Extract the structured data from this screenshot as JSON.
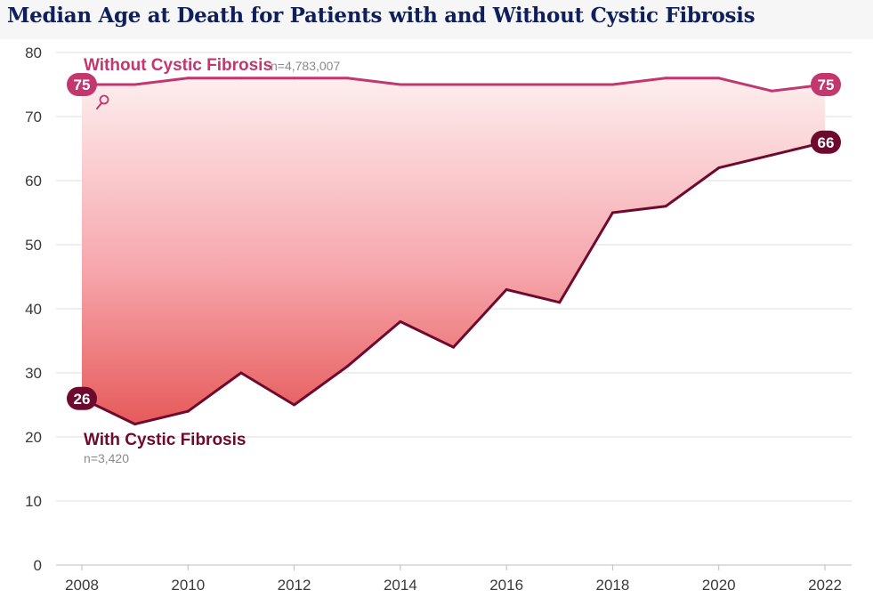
{
  "title": "Median Age at Death for Patients with and Without Cystic Fibrosis",
  "chart_data": {
    "type": "line",
    "title": "Median Age at Death for Patients with and Without Cystic Fibrosis",
    "xlabel": "",
    "ylabel": "",
    "x": [
      2008,
      2009,
      2010,
      2011,
      2012,
      2013,
      2014,
      2015,
      2016,
      2017,
      2018,
      2019,
      2020,
      2021,
      2022
    ],
    "xticks": [
      "2008",
      "2010",
      "2012",
      "2014",
      "2016",
      "2018",
      "2020",
      "2022"
    ],
    "yticks": [
      "0",
      "10",
      "20",
      "30",
      "40",
      "50",
      "60",
      "70",
      "80"
    ],
    "xlim": [
      2008,
      2022
    ],
    "ylim": [
      0,
      80
    ],
    "grid": true,
    "series": [
      {
        "name": "Without Cystic Fibrosis",
        "n_label": "n=4,783,007",
        "color": "#c2376e",
        "values": [
          75,
          75,
          76,
          76,
          76,
          76,
          75,
          75,
          75,
          75,
          75,
          76,
          76,
          74,
          75
        ],
        "start_label": "75",
        "end_label": "75"
      },
      {
        "name": "With Cystic Fibrosis",
        "n_label": "n=3,420",
        "color": "#6d0a2e",
        "values": [
          26,
          22,
          24,
          30,
          25,
          31,
          38,
          34,
          43,
          41,
          55,
          56,
          62,
          64,
          66
        ],
        "start_label": "26",
        "end_label": "66"
      }
    ],
    "gap_fill_colors": [
      "#fdeeee",
      "#e65a5a"
    ],
    "marker_icon": "search-icon"
  }
}
